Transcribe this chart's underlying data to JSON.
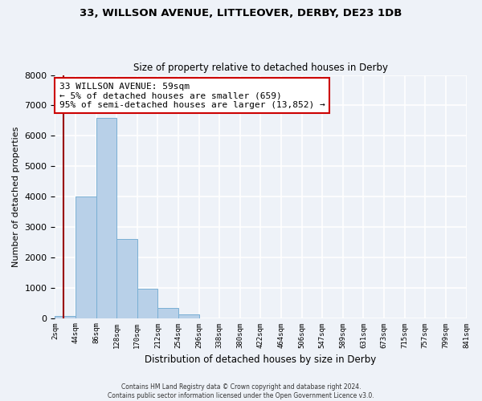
{
  "title_line1": "33, WILLSON AVENUE, LITTLEOVER, DERBY, DE23 1DB",
  "title_line2": "Size of property relative to detached houses in Derby",
  "xlabel": "Distribution of detached houses by size in Derby",
  "ylabel": "Number of detached properties",
  "bar_heights": [
    60,
    4000,
    6600,
    2600,
    960,
    330,
    130,
    0,
    0,
    0,
    0,
    0,
    0,
    0,
    0,
    0,
    0,
    0,
    0,
    0
  ],
  "bar_color": "#b8d0e8",
  "bar_edgecolor": "#7aafd4",
  "property_line_bin": 0.42,
  "property_line_color": "#990000",
  "ylim": [
    0,
    8000
  ],
  "annotation_text": "33 WILLSON AVENUE: 59sqm\n← 5% of detached houses are smaller (659)\n95% of semi-detached houses are larger (13,852) →",
  "annotation_box_color": "#ffffff",
  "annotation_box_edgecolor": "#cc0000",
  "footer_line1": "Contains HM Land Registry data © Crown copyright and database right 2024.",
  "footer_line2": "Contains public sector information licensed under the Open Government Licence v3.0.",
  "tick_labels": [
    "2sqm",
    "44sqm",
    "86sqm",
    "128sqm",
    "170sqm",
    "212sqm",
    "254sqm",
    "296sqm",
    "338sqm",
    "380sqm",
    "422sqm",
    "464sqm",
    "506sqm",
    "547sqm",
    "589sqm",
    "631sqm",
    "673sqm",
    "715sqm",
    "757sqm",
    "799sqm",
    "841sqm"
  ],
  "background_color": "#eef2f8",
  "n_bins": 20
}
